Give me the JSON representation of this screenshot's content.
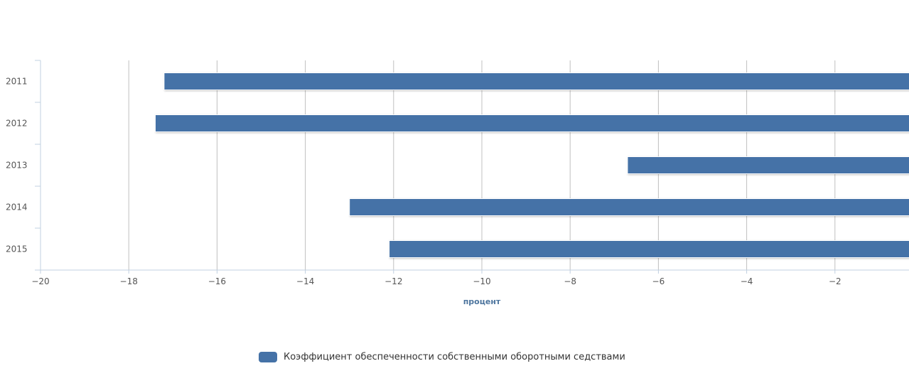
{
  "chart_data": {
    "type": "bar",
    "orientation": "horizontal",
    "categories": [
      "2011",
      "2012",
      "2013",
      "2014",
      "2015"
    ],
    "series": [
      {
        "name": "Коэффициент обеспеченности собственными оборотными седствами",
        "color": "#4572a7",
        "values": [
          -17.2,
          -17.4,
          -6.7,
          -13.0,
          -12.1
        ]
      }
    ],
    "xlabel": "процент",
    "ylabel": "",
    "xlim": [
      -20,
      0
    ],
    "x_ticks": [
      -20,
      -18,
      -16,
      -14,
      -12,
      -10,
      -8,
      -6,
      -4,
      -2
    ],
    "x_tick_labels": [
      "−20",
      "−18",
      "−16",
      "−14",
      "−12",
      "−10",
      "−8",
      "−6",
      "−4",
      "−2"
    ],
    "grid": "vertical",
    "legend_position": "bottom-center"
  }
}
